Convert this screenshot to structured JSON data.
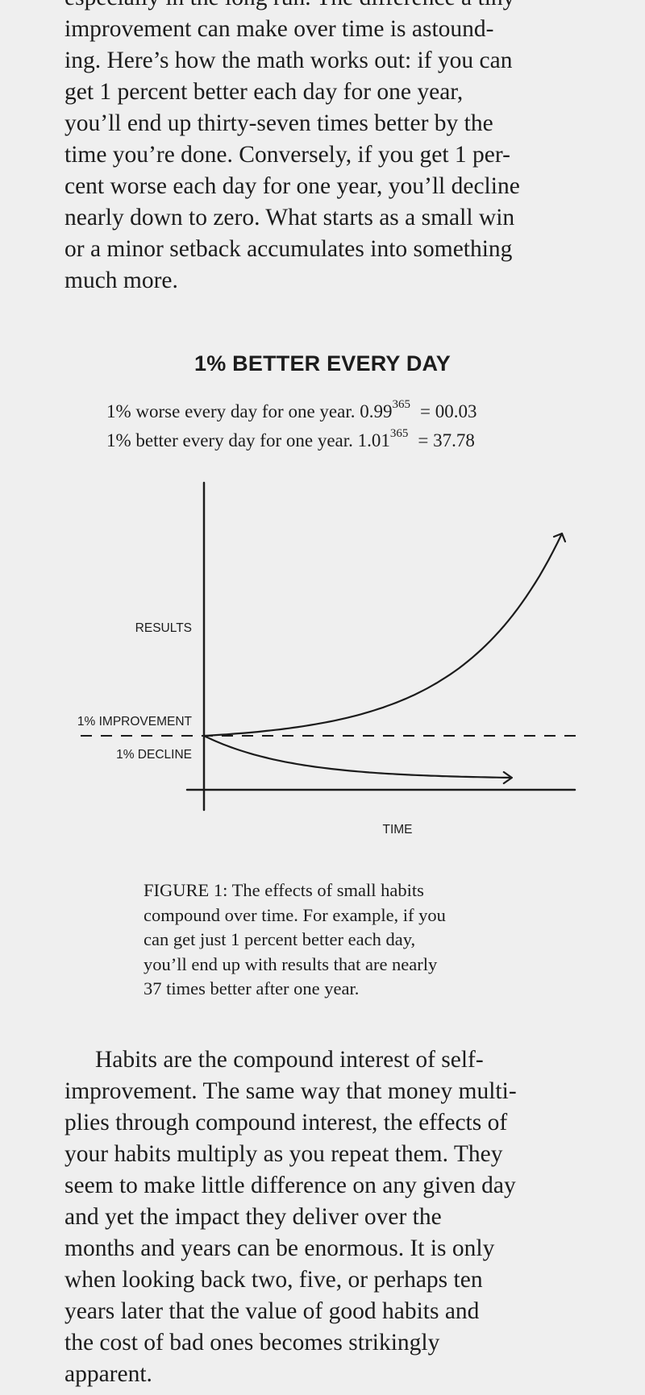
{
  "top_paragraph": {
    "lines": [
      "especially in the long run. The difference a tiny",
      "improvement can make over time is astound-",
      "ing. Here’s how the math works out: if you can",
      "get 1 percent better each day for one year,",
      "you’ll end up thirty-seven times better by the",
      "time you’re done. Conversely, if you get 1 per-",
      "cent worse each day for one year, you’ll decline",
      "nearly down to zero. What starts as a small win",
      "or a minor setback accumulates into something",
      "much more."
    ]
  },
  "figure": {
    "title": "1% BETTER EVERY DAY",
    "formulas": [
      {
        "text": "1% worse every day for one year. 0.99",
        "exponent": "365",
        "result": "= 00.03"
      },
      {
        "text": "1% better every day for one year. 1.01",
        "exponent": "365",
        "result": "= 37.78"
      }
    ],
    "caption_lines": [
      "FIGURE 1: The effects of small habits",
      "compound over time. For example, if you",
      "can get just 1 percent better each day,",
      "you’ll end up with results that are nearly",
      "37 times better after one year."
    ]
  },
  "chart_data": {
    "type": "line",
    "ylabel": "RESULTS",
    "xlabel": "TIME",
    "series": [
      {
        "name": "1% IMPROVEMENT",
        "x": [
          0,
          73,
          146,
          219,
          292,
          365
        ],
        "y": [
          1,
          2.07,
          4.27,
          8.82,
          18.22,
          37.78
        ]
      },
      {
        "name": "1% DECLINE",
        "x": [
          0,
          73,
          146,
          219,
          292,
          365
        ],
        "y": [
          1,
          0.48,
          0.23,
          0.11,
          0.05,
          0.03
        ]
      }
    ],
    "baseline_line_style": "dashed",
    "grid": false,
    "legend": "none"
  },
  "bottom_paragraph": {
    "lines": [
      "Habits are the compound interest of self-",
      "improvement. The same way that money multi-",
      "plies through compound interest, the effects of",
      "your habits multiply as you repeat them. They",
      "seem to make little difference on any given day",
      "and yet the impact they deliver over the",
      "months and years can be enormous. It is only",
      "when looking back two, five, or perhaps ten",
      "years later that the value of good habits and",
      "the cost of bad ones becomes strikingly",
      "apparent."
    ]
  },
  "colors": {
    "background": "#efefef",
    "ink": "#1c1c1c"
  }
}
